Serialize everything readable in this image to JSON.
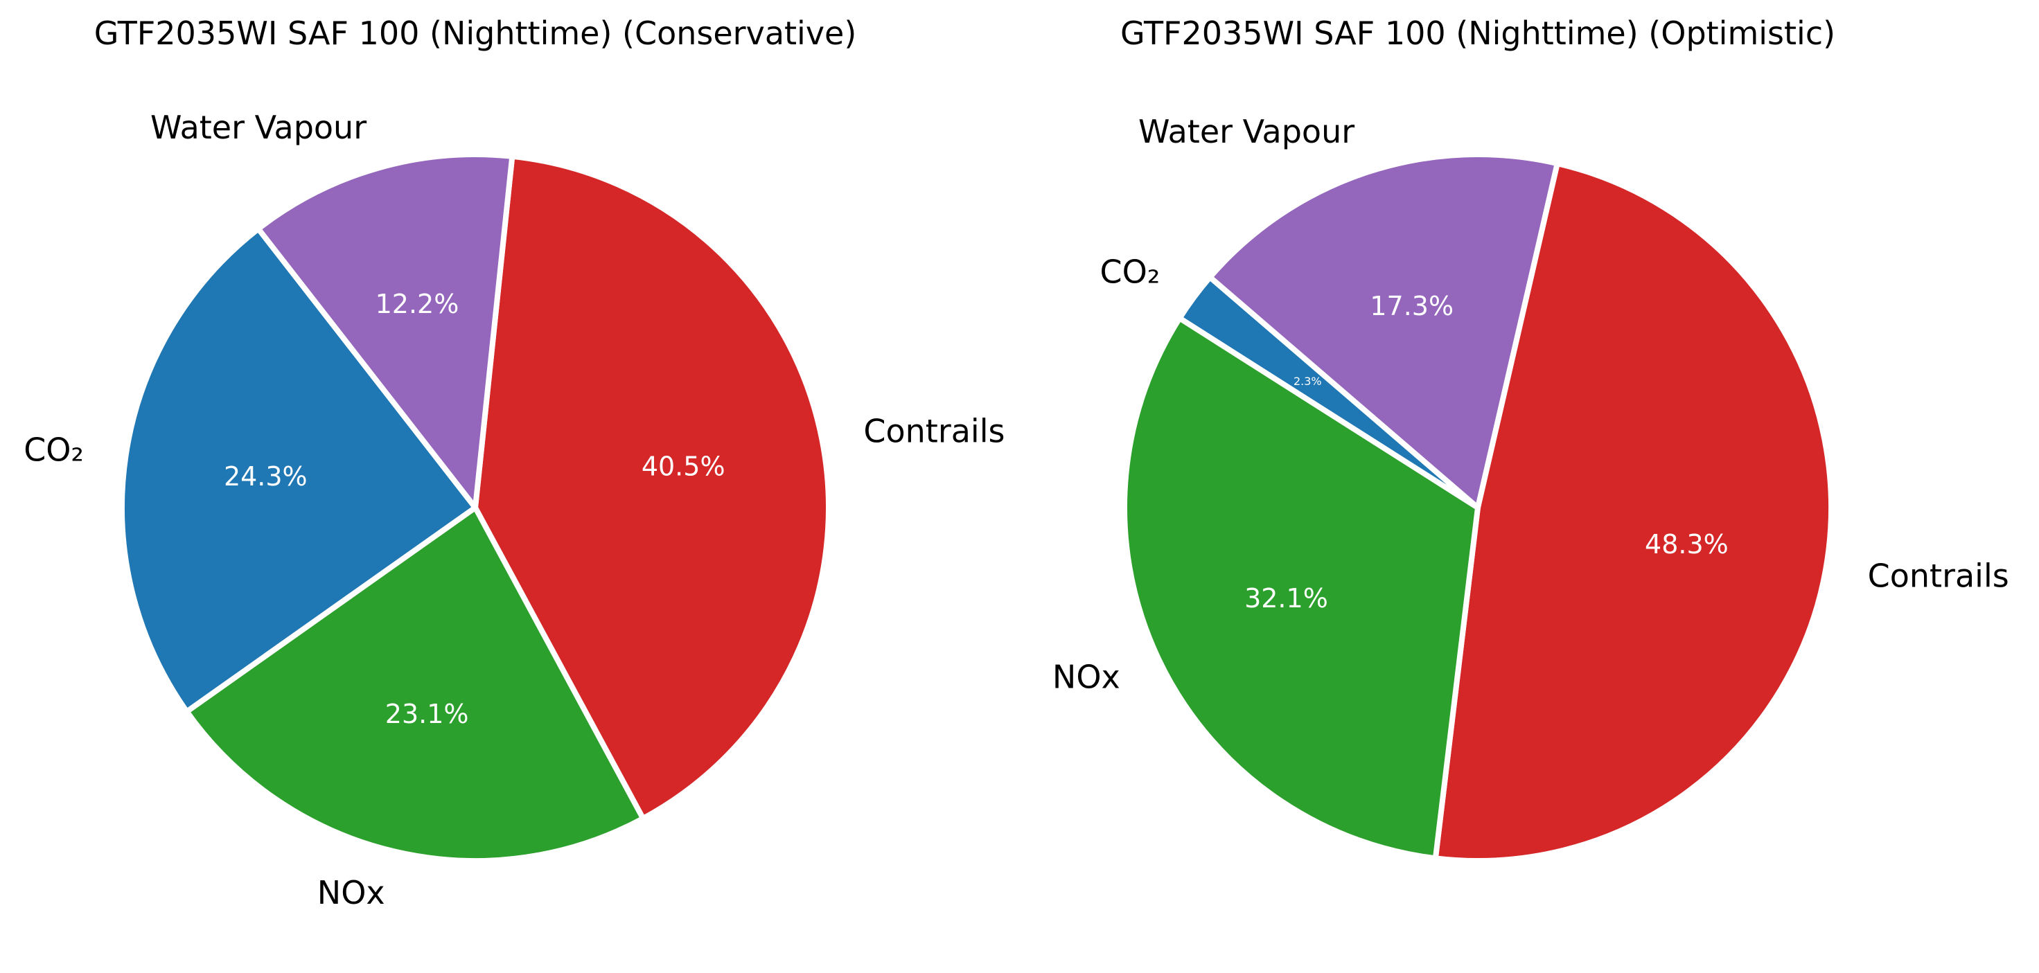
{
  "chart_data": [
    {
      "type": "pie",
      "title": "GTF2035WI SAF 100 (Nighttime) (Conservative)",
      "slices": [
        {
          "label": "Contrails",
          "value": 40.5,
          "pct_label": "40.5%",
          "color": "#d62728"
        },
        {
          "label": "NOx",
          "value": 23.1,
          "pct_label": "23.1%",
          "color": "#2ca02c"
        },
        {
          "label": "CO₂",
          "value": 24.3,
          "pct_label": "24.3%",
          "color": "#1f77b4"
        },
        {
          "label": "Water Vapour",
          "value": 12.2,
          "pct_label": "12.2%",
          "color": "#9467bd"
        }
      ]
    },
    {
      "type": "pie",
      "title": "GTF2035WI SAF 100 (Nighttime) (Optimistic)",
      "slices": [
        {
          "label": "Contrails",
          "value": 48.3,
          "pct_label": "48.3%",
          "color": "#d62728"
        },
        {
          "label": "NOx",
          "value": 32.1,
          "pct_label": "32.1%",
          "color": "#2ca02c"
        },
        {
          "label": "CO₂",
          "value": 2.3,
          "pct_label": "2.3%",
          "color": "#1f77b4"
        },
        {
          "label": "Water Vapour",
          "value": 17.3,
          "pct_label": "17.3%",
          "color": "#9467bd"
        }
      ]
    }
  ]
}
